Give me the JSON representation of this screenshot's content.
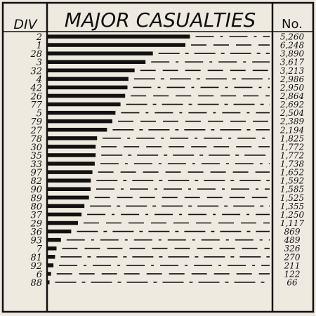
{
  "chart_data": {
    "type": "bar",
    "orientation": "horizontal",
    "title": "MAJOR CASUALTIES",
    "category_header": "DIV",
    "value_header": "No.",
    "categories": [
      "2",
      "1",
      "28",
      "3",
      "32",
      "4",
      "42",
      "26",
      "77",
      "5",
      "79",
      "27",
      "78",
      "30",
      "35",
      "33",
      "97",
      "82",
      "90",
      "89",
      "80",
      "37",
      "29",
      "36",
      "93",
      "7",
      "81",
      "92",
      "6",
      "88"
    ],
    "values": [
      5260,
      6248,
      3890,
      3617,
      3213,
      2986,
      2950,
      2864,
      2692,
      2504,
      2389,
      2194,
      1825,
      1772,
      1772,
      1738,
      1652,
      1592,
      1585,
      1525,
      1355,
      1250,
      1117,
      869,
      489,
      326,
      270,
      211,
      122,
      66
    ],
    "value_labels": [
      "5,260",
      "6,248",
      "3,890",
      "3,617",
      "3,213",
      "2,986",
      "2,950",
      "2,864",
      "2,692",
      "2,504",
      "2,389",
      "2,194",
      "1,825",
      "1,772",
      "1,772",
      "1,738",
      "1,652",
      "1,592",
      "1,585",
      "1,525",
      "1,355",
      "1,250",
      "1,117",
      "869",
      "489",
      "326",
      "270",
      "211",
      "122",
      "66"
    ],
    "xlim": [
      0,
      7000
    ],
    "grid": false,
    "legend": "none",
    "colors": {
      "bar": "#111111",
      "background": "#efeae0",
      "ink": "#111111"
    }
  }
}
